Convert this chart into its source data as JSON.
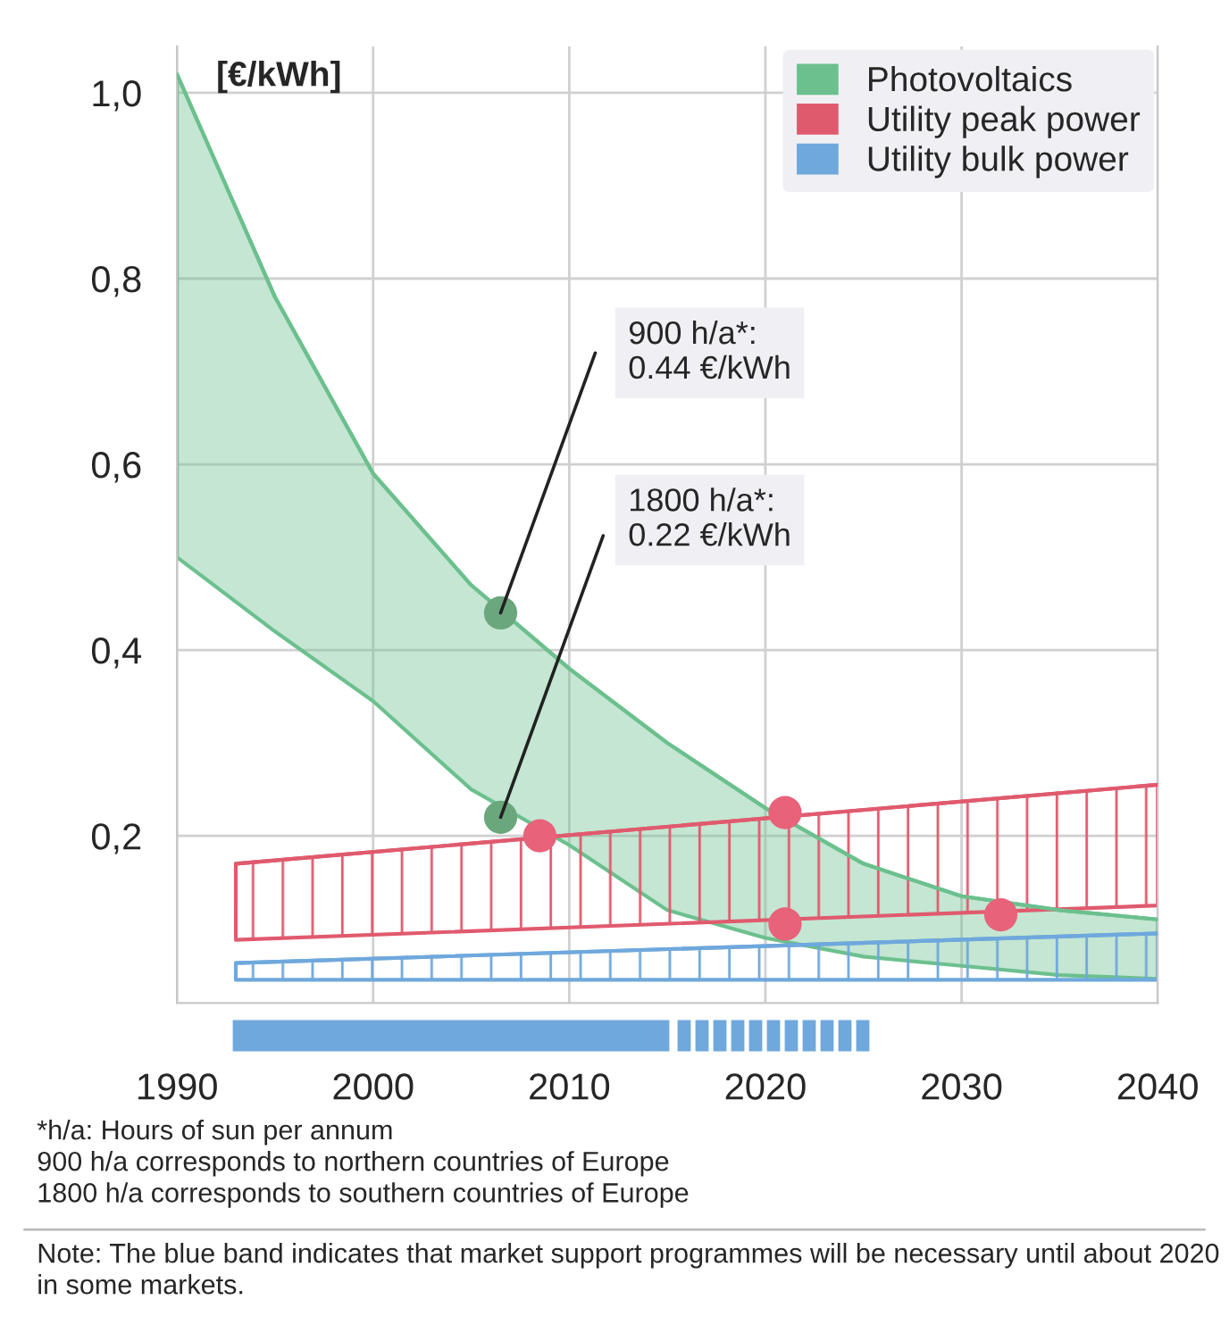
{
  "chart_data": {
    "type": "line",
    "ylabel": "[€/kWh]",
    "series": [
      {
        "name": "Photovoltaics",
        "color": "#6cc08e",
        "x": [
          1990,
          1995,
          2000,
          2005,
          2010,
          2015,
          2020,
          2025,
          2030,
          2035,
          2040
        ],
        "values": [
          1.02,
          0.78,
          0.59,
          0.47,
          0.38,
          0.3,
          0.23,
          0.17,
          0.135,
          0.12,
          0.11
        ],
        "lower": [
          0.5,
          0.42,
          0.345,
          0.25,
          0.19,
          0.12,
          0.09,
          0.07,
          0.06,
          0.05,
          0.046
        ],
        "upper": [
          1.02,
          0.78,
          0.59,
          0.47,
          0.38,
          0.3,
          0.23,
          0.17,
          0.135,
          0.12,
          0.11
        ]
      },
      {
        "name": "Utility peak power",
        "color": "#e05a6e",
        "x": [
          1993,
          2040
        ],
        "values": [
          0.17,
          0.255
        ],
        "lower": [
          0.088,
          0.125
        ],
        "upper": [
          0.17,
          0.255
        ]
      },
      {
        "name": "Utility bulk power",
        "color": "#6fa8dc",
        "x": [
          1993,
          2040
        ],
        "values": [
          0.063,
          0.095
        ],
        "lower": [
          0.045,
          0.045
        ],
        "upper": [
          0.063,
          0.095
        ]
      },
      {
        "type": "scatter",
        "marker": "circle",
        "color": "#6aa77d",
        "x": [
          2006.5,
          2006.5
        ],
        "values": [
          0.44,
          0.22
        ]
      },
      {
        "type": "scatter",
        "marker": "circle",
        "color": "#e8627a",
        "x": [
          2008.5,
          2021,
          2021,
          2032
        ],
        "values": [
          0.2,
          0.225,
          0.105,
          0.115
        ]
      }
    ],
    "xlim": [
      1990,
      2040
    ],
    "xticks": [
      1990,
      2000,
      2010,
      2020,
      2030,
      2040
    ],
    "ylim": [
      0.02,
      1.05
    ],
    "yticks": [
      {
        "value": 0.2,
        "label": "0,2"
      },
      {
        "value": 0.4,
        "label": "0,4"
      },
      {
        "value": 0.6,
        "label": "0,6"
      },
      {
        "value": 0.8,
        "label": "0,8"
      },
      {
        "value": 1.0,
        "label": "1,0"
      }
    ],
    "grid": true,
    "legend": "top right",
    "annotations": [
      {
        "text": "900 h/a*:\n0.44 €/kWh",
        "x": 2006.5,
        "y": 0.44
      },
      {
        "text": "1800 h/a*:\n0.22 €/kWh",
        "x": 2006.5,
        "y": 0.22
      },
      "*h/a: Hours of sun per annum\n900 h/a corresponds to northern countries of Europe\n1800 h/a corresponds to southern countries of Europe",
      "Note: The blue band indicates that market support programmes will be necessary until about 2020 in some markets."
    ]
  }
}
